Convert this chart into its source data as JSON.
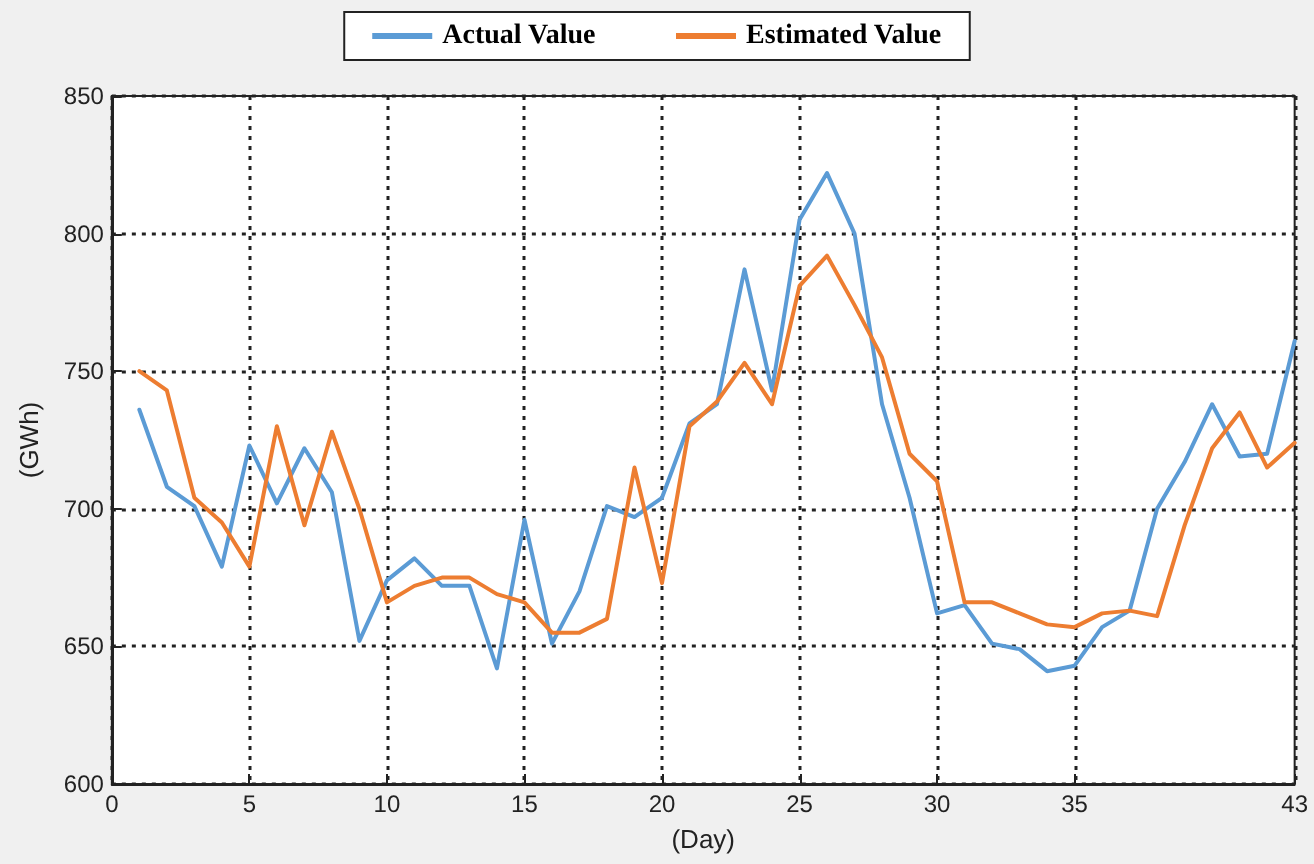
{
  "chart_data": {
    "type": "line",
    "xlabel": "(Day)",
    "ylabel": "(GWh)",
    "x": [
      1,
      2,
      3,
      4,
      5,
      6,
      7,
      8,
      9,
      10,
      11,
      12,
      13,
      14,
      15,
      16,
      17,
      18,
      19,
      20,
      21,
      22,
      23,
      24,
      25,
      26,
      27,
      28,
      29,
      30,
      31,
      32,
      33,
      34,
      35,
      36,
      37,
      38,
      39,
      40,
      41,
      42,
      43
    ],
    "series": [
      {
        "name": "Actual Value",
        "color": "#5b9bd5",
        "values": [
          736,
          708,
          701,
          679,
          723,
          702,
          722,
          706,
          652,
          674,
          682,
          672,
          672,
          642,
          696,
          651,
          670,
          701,
          697,
          704,
          731,
          738,
          787,
          743,
          805,
          822,
          800,
          738,
          704,
          662,
          665,
          651,
          649,
          641,
          643,
          657,
          663,
          700,
          717,
          738,
          719,
          720,
          761
        ]
      },
      {
        "name": "Estimated Value",
        "color": "#ed7d31",
        "values": [
          750,
          743,
          704,
          695,
          679,
          730,
          694,
          728,
          700,
          666,
          672,
          675,
          675,
          669,
          666,
          655,
          655,
          660,
          715,
          673,
          730,
          739,
          753,
          738,
          781,
          792,
          774,
          755,
          720,
          710,
          666,
          666,
          662,
          658,
          657,
          662,
          663,
          661,
          694,
          722,
          735,
          715,
          724
        ]
      }
    ],
    "xlim": [
      0,
      43
    ],
    "xticks": [
      0,
      5,
      10,
      15,
      20,
      25,
      30,
      35,
      43
    ],
    "ylim": [
      600,
      850
    ],
    "yticks": [
      600,
      650,
      700,
      750,
      800,
      850
    ],
    "grid": true,
    "legend": "top",
    "marker": "none",
    "line_style": "solid"
  }
}
